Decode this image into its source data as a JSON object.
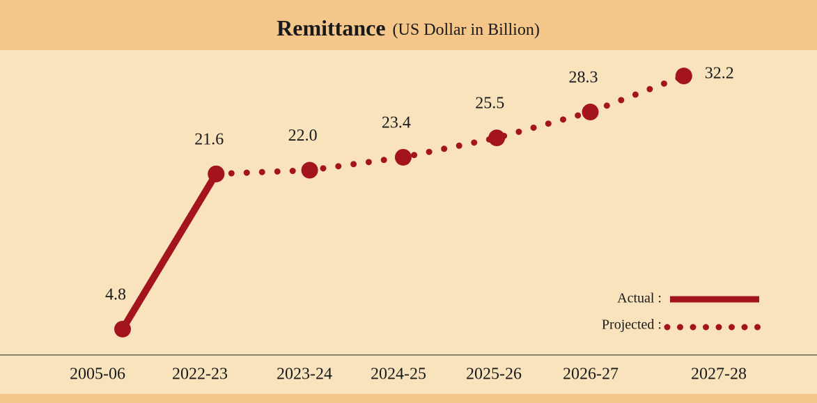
{
  "chart_data": {
    "type": "line",
    "title": "Remittance",
    "subtitle": "(US Dollar in Billion)",
    "categories": [
      "2005-06",
      "2022-23",
      "2023-24",
      "2024-25",
      "2025-26",
      "2026-27",
      "2027-28"
    ],
    "series": [
      {
        "name": "Actual :",
        "color": "#a3141c",
        "style": "solid",
        "values": [
          4.8,
          21.6,
          null,
          null,
          null,
          null,
          null
        ]
      },
      {
        "name": "Projected :",
        "color": "#a3141c",
        "style": "dotted",
        "values": [
          null,
          21.6,
          22,
          23.4,
          25.5,
          28.3,
          32.2
        ],
        "value_labels": [
          null,
          null,
          "22.0",
          "23.4",
          "25.5",
          "28.3",
          "32.2"
        ]
      }
    ],
    "ylim": [
      2,
      35
    ],
    "legend": "lower right"
  }
}
